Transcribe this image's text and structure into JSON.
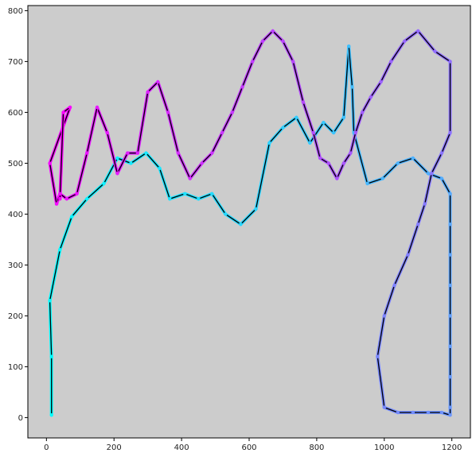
{
  "chart_data": {
    "type": "line",
    "title": "",
    "xlabel": "",
    "ylabel": "",
    "xlim": [
      -55,
      1255
    ],
    "ylim": [
      -40,
      810
    ],
    "xticks": [
      0,
      200,
      400,
      600,
      800,
      1000,
      1200
    ],
    "yticks": [
      0,
      100,
      200,
      300,
      400,
      500,
      600,
      700,
      800
    ],
    "grid": false,
    "legend": "none",
    "background": "#cccccc",
    "line_color": "#000000",
    "marker": "circle",
    "color_gradient": [
      "#00ffff",
      "#ff00ff"
    ],
    "description_of_path": "single continuous tour through points; color varies along path from cyan to magenta",
    "series": [
      {
        "x": [
          15,
          15,
          10,
          40,
          75,
          120,
          170,
          210,
          250,
          295,
          335,
          365,
          410,
          450,
          490,
          530,
          575,
          620,
          660,
          700,
          740,
          780,
          820,
          850,
          880,
          895,
          905,
          910,
          950,
          995,
          1040,
          1085,
          1130,
          1170,
          1195,
          1195,
          1195,
          1195,
          1195,
          1195,
          1195,
          1195,
          1195,
          1170,
          1130,
          1085,
          1040,
          1000,
          980,
          1000,
          1030,
          1070,
          1100,
          1120,
          1140,
          1170,
          1195,
          1195,
          1150,
          1100,
          1060,
          1020,
          990,
          960,
          935,
          915,
          900,
          880,
          860,
          835,
          810,
          790,
          760,
          730,
          700,
          670,
          640,
          610,
          580,
          550,
          520,
          490,
          460,
          425,
          390,
          360,
          330,
          300,
          270,
          240,
          210,
          180,
          150,
          120,
          90,
          60,
          40,
          30,
          10,
          70,
          50,
          40
        ],
        "y": [
          5,
          120,
          230,
          330,
          395,
          430,
          460,
          510,
          500,
          520,
          490,
          430,
          440,
          430,
          440,
          400,
          380,
          410,
          540,
          570,
          590,
          540,
          580,
          560,
          590,
          730,
          650,
          560,
          460,
          470,
          500,
          510,
          480,
          470,
          440,
          380,
          320,
          260,
          200,
          140,
          80,
          20,
          5,
          10,
          10,
          10,
          10,
          20,
          120,
          200,
          260,
          320,
          380,
          420,
          480,
          520,
          560,
          700,
          720,
          760,
          740,
          700,
          660,
          630,
          600,
          560,
          520,
          500,
          470,
          500,
          510,
          560,
          620,
          700,
          740,
          760,
          740,
          700,
          650,
          600,
          560,
          520,
          500,
          470,
          520,
          600,
          660,
          640,
          520,
          520,
          480,
          560,
          610,
          520,
          440,
          430,
          440,
          420,
          500,
          610,
          600,
          430
        ]
      }
    ]
  }
}
